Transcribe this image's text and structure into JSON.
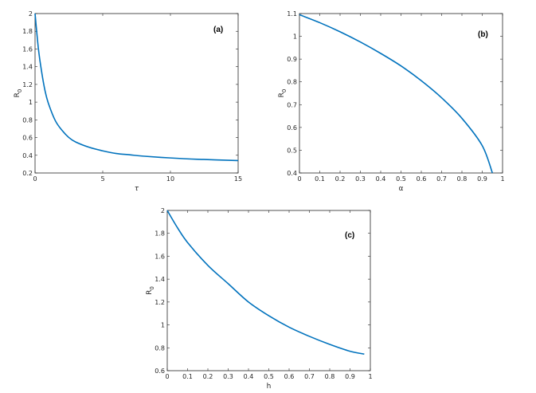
{
  "colors": {
    "series": "#0072BD",
    "axis": "#262626"
  },
  "chart_data": [
    {
      "type": "line",
      "panel_label": "(a)",
      "xlabel": "τ",
      "ylabel": "R",
      "ylabel_sub": "0",
      "xlim": [
        0,
        15
      ],
      "ylim": [
        0.2,
        2
      ],
      "xticks": [
        0,
        5,
        10,
        15
      ],
      "yticks": [
        0.2,
        0.4,
        0.6,
        0.8,
        1,
        1.2,
        1.4,
        1.6,
        1.8,
        2
      ],
      "grid": false,
      "x": [
        0,
        0.25,
        0.5,
        0.75,
        1,
        1.5,
        2,
        2.5,
        3,
        4,
        5,
        6,
        7,
        8,
        10,
        12,
        15
      ],
      "y": [
        2.0,
        1.6,
        1.33,
        1.12,
        0.98,
        0.79,
        0.68,
        0.6,
        0.55,
        0.49,
        0.45,
        0.42,
        0.405,
        0.39,
        0.37,
        0.355,
        0.34
      ]
    },
    {
      "type": "line",
      "panel_label": "(b)",
      "xlabel": "α",
      "ylabel": "R",
      "ylabel_sub": "0",
      "xlim": [
        0,
        1
      ],
      "ylim": [
        0.4,
        1.1
      ],
      "xticks": [
        0,
        0.1,
        0.2,
        0.3,
        0.4,
        0.5,
        0.6,
        0.7,
        0.8,
        0.9,
        1
      ],
      "yticks": [
        0.4,
        0.5,
        0.6,
        0.7,
        0.8,
        0.9,
        1,
        1.1
      ],
      "grid": false,
      "x": [
        0,
        0.1,
        0.2,
        0.3,
        0.4,
        0.5,
        0.6,
        0.7,
        0.8,
        0.9,
        0.95
      ],
      "y": [
        1.095,
        1.06,
        1.02,
        0.975,
        0.925,
        0.87,
        0.805,
        0.73,
        0.64,
        0.52,
        0.4
      ]
    },
    {
      "type": "line",
      "panel_label": "(c)",
      "xlabel": "h",
      "ylabel": "R",
      "ylabel_sub": "0",
      "xlim": [
        0,
        1
      ],
      "ylim": [
        0.6,
        2
      ],
      "xticks": [
        0,
        0.1,
        0.2,
        0.3,
        0.4,
        0.5,
        0.6,
        0.7,
        0.8,
        0.9,
        1
      ],
      "yticks": [
        0.6,
        0.8,
        1,
        1.2,
        1.4,
        1.6,
        1.8,
        2
      ],
      "grid": false,
      "x": [
        0,
        0.05,
        0.1,
        0.2,
        0.3,
        0.4,
        0.5,
        0.6,
        0.7,
        0.8,
        0.9,
        0.97
      ],
      "y": [
        2.0,
        1.85,
        1.72,
        1.52,
        1.36,
        1.2,
        1.08,
        0.98,
        0.9,
        0.83,
        0.77,
        0.745
      ]
    }
  ]
}
